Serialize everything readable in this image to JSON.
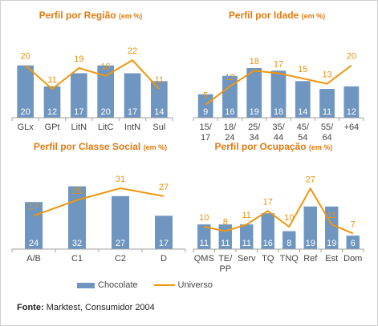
{
  "colors": {
    "bar": "#6f96c0",
    "line": "#f0960f",
    "title": "#e07b12",
    "bar_label": "#ffffff",
    "line_label": "#e8920f",
    "axis": "#a0a0a0",
    "tick": "#444444"
  },
  "legend": {
    "bar_label": "Chocolate",
    "line_label": "Universo"
  },
  "source": {
    "label": "Fonte:",
    "text": "Marktest, Consumidor 2004"
  },
  "chart_data": [
    {
      "type": "bar",
      "title": "Perfil por Região",
      "title_unit": "(em %)",
      "categories": [
        "GLx",
        "GPt",
        "LitN",
        "LitC",
        "IntN",
        "Sul"
      ],
      "ylim": [
        0,
        30
      ],
      "series": [
        {
          "name": "Chocolate",
          "type": "bar",
          "values": [
            20,
            12,
            17,
            20,
            17,
            14
          ]
        },
        {
          "name": "Universo",
          "type": "line",
          "values": [
            20,
            11,
            19,
            16,
            22,
            11
          ]
        }
      ]
    },
    {
      "type": "bar",
      "title": "Perfil por Idade",
      "title_unit": "(em %)",
      "categories": [
        "15/\n17",
        "18/\n24",
        "25/\n34",
        "35/\n44",
        "45/\n54",
        "55/\n64",
        "+64"
      ],
      "ylim": [
        0,
        30
      ],
      "series": [
        {
          "name": "Chocolate",
          "type": "bar",
          "values": [
            9,
            16,
            19,
            18,
            14,
            11,
            12
          ]
        },
        {
          "name": "Universo",
          "type": "line",
          "values": [
            5,
            12,
            18,
            17,
            15,
            13,
            20
          ]
        }
      ]
    },
    {
      "type": "bar",
      "title": "Perfil por Classe Social",
      "title_unit": "(em %)",
      "categories": [
        "A/B",
        "C1",
        "C2",
        "D"
      ],
      "ylim": [
        0,
        40
      ],
      "series": [
        {
          "name": "Chocolate",
          "type": "bar",
          "values": [
            24,
            32,
            27,
            17
          ]
        },
        {
          "name": "Universo",
          "type": "line",
          "values": [
            17,
            25,
            31,
            27
          ]
        }
      ]
    },
    {
      "type": "bar",
      "title": "Perfil por Ocupação",
      "title_unit": "(em %)",
      "categories": [
        "QMS",
        "TE/\nPP",
        "Serv",
        "TQ",
        "TNQ",
        "Ref",
        "Est",
        "Dom"
      ],
      "ylim": [
        0,
        35
      ],
      "series": [
        {
          "name": "Chocolate",
          "type": "bar",
          "values": [
            11,
            11,
            11,
            16,
            8,
            19,
            19,
            6
          ]
        },
        {
          "name": "Universo",
          "type": "line",
          "values": [
            10,
            8,
            11,
            17,
            10,
            27,
            11,
            7
          ]
        }
      ]
    }
  ]
}
